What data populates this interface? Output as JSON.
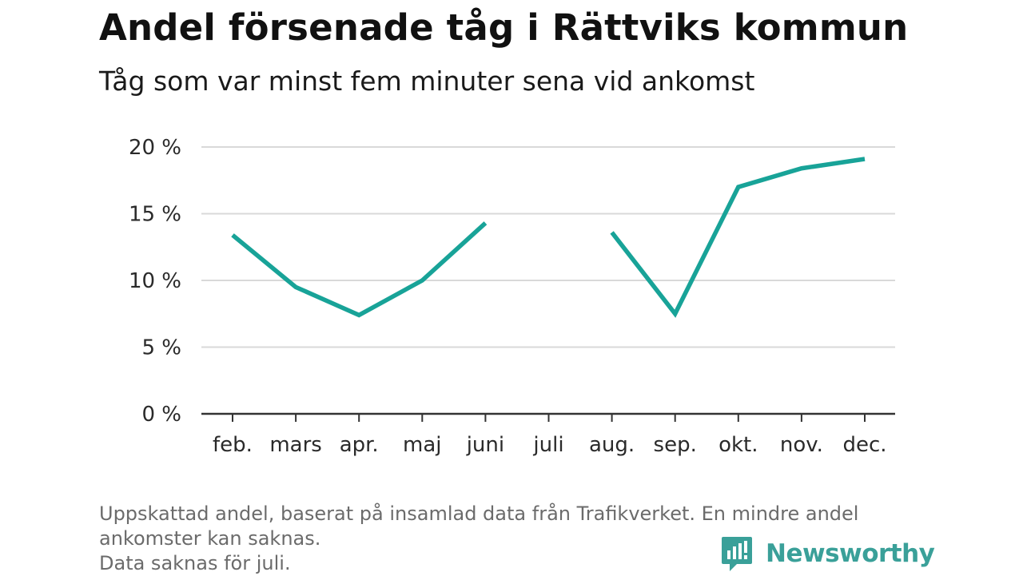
{
  "title": "Andel försenade tåg i Rättviks kommun",
  "subtitle": "Tåg som var minst fem minuter sena vid ankomst",
  "footer": {
    "note_line1": "Uppskattad andel, baserat på insamlad data från Trafikverket. En mindre andel ankomster kan saknas.",
    "note_line2": "Data saknas för juli."
  },
  "brand": {
    "name": "Newsworthy",
    "icon": "newsworthy-logo-icon",
    "color": "#3aa099"
  },
  "colors": {
    "line": "#18a398",
    "grid": "#d9d9d9",
    "axis": "#333333"
  },
  "chart_data": {
    "type": "line",
    "title": "Andel försenade tåg i Rättviks kommun",
    "subtitle": "Tåg som var minst fem minuter sena vid ankomst",
    "categories": [
      "feb.",
      "mars",
      "apr.",
      "maj",
      "juni",
      "juli",
      "aug.",
      "sep.",
      "okt.",
      "nov.",
      "dec."
    ],
    "series": [
      {
        "values": [
          13.4,
          9.5,
          7.4,
          10.0,
          14.3,
          null,
          13.6,
          7.5,
          17.0,
          18.4,
          19.1
        ]
      }
    ],
    "y_ticks": [
      0,
      5,
      10,
      15,
      20
    ],
    "y_tick_labels": [
      "0 %",
      "5 %",
      "10 %",
      "15 %",
      "20 %"
    ],
    "ylim": [
      0,
      20
    ],
    "xlabel": "",
    "ylabel": "",
    "grid": true,
    "legend": "none"
  }
}
